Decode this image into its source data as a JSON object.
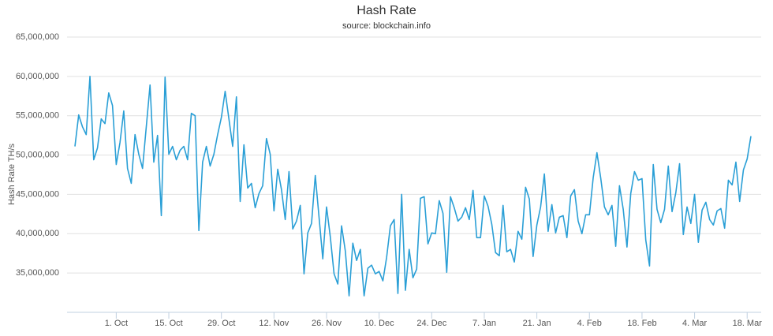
{
  "chart_data": {
    "type": "line",
    "title": "Hash Rate",
    "subtitle": "source: blockchain.info",
    "y_label": "Hash Rate TH/s",
    "categories": [
      null,
      null,
      null,
      null,
      null,
      null,
      null,
      null,
      null,
      null,
      null,
      "1. Oct",
      null,
      null,
      null,
      null,
      null,
      null,
      null,
      null,
      null,
      null,
      null,
      null,
      null,
      "15. Oct",
      null,
      null,
      null,
      null,
      null,
      null,
      null,
      null,
      null,
      null,
      null,
      null,
      null,
      "29. Oct",
      null,
      null,
      null,
      null,
      null,
      null,
      null,
      null,
      null,
      null,
      null,
      null,
      null,
      "12. Nov",
      null,
      null,
      null,
      null,
      null,
      null,
      null,
      null,
      null,
      null,
      null,
      null,
      null,
      "26. Nov",
      null,
      null,
      null,
      null,
      null,
      null,
      null,
      null,
      null,
      null,
      null,
      null,
      null,
      "10. Dec",
      null,
      null,
      null,
      null,
      null,
      null,
      null,
      null,
      null,
      null,
      null,
      null,
      null,
      "24. Dec",
      null,
      null,
      null,
      null,
      null,
      null,
      null,
      null,
      null,
      null,
      null,
      null,
      null,
      "7. Jan",
      null,
      null,
      null,
      null,
      null,
      null,
      null,
      null,
      null,
      null,
      null,
      null,
      null,
      "21. Jan",
      null,
      null,
      null,
      null,
      null,
      null,
      null,
      null,
      null,
      null,
      null,
      null,
      null,
      "4. Feb",
      null,
      null,
      null,
      null,
      null,
      null,
      null,
      null,
      null,
      null,
      null,
      null,
      null,
      "18. Feb",
      null,
      null,
      null,
      null,
      null,
      null,
      null,
      null,
      null,
      null,
      null,
      null,
      null,
      "4. Mar",
      null,
      null,
      null,
      null,
      null,
      null,
      null,
      null,
      null,
      null,
      null,
      null,
      null,
      "18. Mar",
      null
    ],
    "series": [
      {
        "name": "Hash Rate",
        "color": "#2a9fd6",
        "values": [
          51100000,
          55100000,
          53600000,
          52600000,
          60000000,
          49400000,
          50900000,
          54600000,
          54000000,
          57900000,
          56300000,
          48800000,
          51600000,
          55600000,
          48300000,
          46400000,
          52600000,
          50100000,
          48300000,
          53600000,
          58900000,
          49100000,
          52500000,
          42300000,
          59900000,
          50100000,
          51100000,
          49400000,
          50600000,
          51100000,
          49400000,
          55300000,
          55000000,
          40400000,
          49100000,
          51100000,
          48600000,
          50100000,
          52600000,
          54800000,
          58100000,
          54600000,
          51100000,
          57400000,
          44100000,
          51300000,
          45800000,
          46400000,
          43300000,
          45100000,
          46100000,
          52100000,
          50100000,
          42900000,
          48200000,
          45600000,
          41800000,
          47900000,
          40600000,
          41600000,
          43600000,
          34900000,
          40100000,
          41300000,
          47400000,
          42100000,
          36800000,
          43400000,
          39600000,
          34900000,
          33600000,
          41000000,
          37800000,
          32100000,
          38800000,
          36600000,
          38000000,
          32100000,
          35600000,
          36000000,
          34900000,
          35200000,
          34000000,
          37000000,
          41000000,
          41800000,
          32400000,
          45000000,
          32800000,
          38000000,
          34400000,
          35500000,
          44500000,
          44700000,
          38700000,
          40100000,
          40000000,
          44200000,
          42600000,
          35100000,
          44700000,
          43300000,
          41600000,
          42100000,
          43300000,
          41800000,
          45500000,
          39500000,
          39500000,
          44800000,
          43500000,
          41200000,
          37600000,
          37200000,
          43600000,
          37700000,
          38000000,
          36400000,
          40300000,
          39300000,
          45900000,
          44400000,
          37100000,
          41100000,
          43400000,
          47600000,
          40300000,
          43700000,
          40100000,
          42100000,
          42300000,
          39500000,
          44800000,
          45600000,
          41600000,
          40000000,
          42400000,
          42400000,
          47100000,
          50300000,
          47100000,
          43400000,
          42400000,
          43600000,
          38400000,
          46100000,
          43100000,
          38300000,
          45100000,
          47900000,
          46800000,
          47000000,
          39200000,
          35900000,
          48800000,
          43100000,
          41400000,
          43100000,
          48600000,
          42800000,
          45200000,
          48900000,
          39900000,
          43400000,
          41300000,
          45000000,
          38900000,
          43000000,
          44000000,
          41800000,
          41100000,
          42900000,
          43200000,
          40700000,
          46800000,
          46200000,
          49100000,
          44100000,
          48100000,
          49500000,
          52400000
        ]
      }
    ],
    "ylim": [
      30000000,
      65000000
    ],
    "yticks": [
      {
        "value": 35000000,
        "label": "35,000,000"
      },
      {
        "value": 40000000,
        "label": "40,000,000"
      },
      {
        "value": 45000000,
        "label": "45,000,000"
      },
      {
        "value": 50000000,
        "label": "50,000,000"
      },
      {
        "value": 55000000,
        "label": "55,000,000"
      },
      {
        "value": 60000000,
        "label": "60,000,000"
      },
      {
        "value": 65000000,
        "label": "65,000,000"
      }
    ],
    "grid": true
  }
}
